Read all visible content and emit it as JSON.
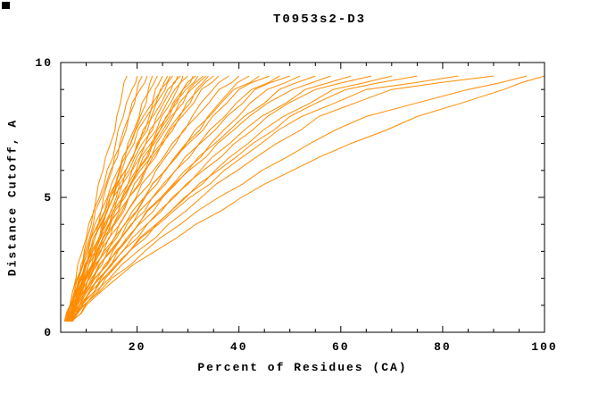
{
  "chart": {
    "title": "T0953s2-D3",
    "xlabel": "Percent of Residues (CA)",
    "ylabel": "Distance Cutoff, A"
  },
  "chart_data": {
    "type": "line",
    "title": "T0953s2-D3",
    "xlabel": "Percent of Residues (CA)",
    "ylabel": "Distance Cutoff, A",
    "xlim": [
      5,
      100
    ],
    "ylim": [
      0,
      10
    ],
    "x_major_ticks": [
      20,
      40,
      60,
      80,
      100
    ],
    "x_minor_step": 5,
    "y_major_ticks": [
      0,
      5,
      10
    ],
    "y_minor_step": 1,
    "grid": false,
    "legend": "none",
    "line_color": "#ff8c00",
    "axis_color": "#000000",
    "background": "#ffffff",
    "y_values": [
      0.4,
      1,
      2,
      3,
      4,
      5,
      6,
      7,
      8,
      9,
      9.5
    ],
    "series": [
      [
        6.0,
        6.8,
        8.0,
        9.2,
        10.5,
        12.0,
        13.3,
        14.8,
        16.0,
        17.2,
        18.0
      ],
      [
        6.2,
        7.0,
        8.3,
        9.6,
        11.0,
        12.6,
        14.1,
        15.8,
        17.3,
        19.0,
        20.0
      ],
      [
        6.3,
        7.2,
        8.6,
        10.1,
        11.7,
        13.4,
        15.1,
        16.9,
        18.4,
        20.0,
        21.0
      ],
      [
        5.8,
        6.8,
        8.2,
        9.8,
        11.4,
        13.0,
        14.8,
        16.6,
        18.4,
        20.6,
        22.0
      ],
      [
        6.7,
        7.7,
        9.3,
        11.0,
        12.8,
        14.7,
        16.7,
        18.7,
        20.6,
        22.2,
        23.0
      ],
      [
        6.5,
        7.4,
        9.0,
        10.6,
        12.4,
        14.2,
        16.2,
        18.2,
        20.4,
        22.6,
        24.0
      ],
      [
        6.0,
        7.0,
        8.6,
        10.4,
        12.3,
        14.3,
        16.5,
        18.8,
        21.2,
        23.6,
        25.0
      ],
      [
        6.8,
        7.8,
        9.5,
        11.3,
        13.3,
        15.4,
        17.7,
        20.0,
        22.4,
        24.8,
        26.0
      ],
      [
        5.7,
        6.8,
        8.5,
        10.4,
        12.5,
        14.7,
        17.0,
        19.4,
        21.9,
        24.6,
        26.5
      ],
      [
        6.3,
        7.3,
        9.0,
        11.0,
        13.1,
        15.3,
        17.7,
        20.2,
        22.8,
        25.5,
        27.0
      ],
      [
        5.9,
        7.0,
        8.8,
        10.8,
        13.0,
        15.3,
        17.8,
        20.4,
        23.1,
        26.0,
        28.0
      ],
      [
        6.2,
        7.3,
        9.2,
        11.3,
        13.5,
        15.9,
        18.4,
        21.0,
        23.8,
        26.7,
        28.5
      ],
      [
        6.6,
        7.7,
        9.6,
        11.7,
        14.0,
        16.4,
        19.0,
        21.7,
        24.5,
        27.4,
        29.0
      ],
      [
        6.1,
        7.2,
        9.1,
        11.3,
        13.7,
        16.2,
        18.9,
        21.8,
        24.8,
        27.9,
        30.0
      ],
      [
        6.9,
        8.0,
        10.0,
        12.2,
        14.6,
        17.2,
        20.0,
        22.9,
        25.9,
        29.0,
        31.0
      ],
      [
        6.8,
        7.9,
        9.9,
        12.1,
        14.5,
        17.0,
        19.8,
        22.7,
        25.7,
        29.0,
        31.5
      ],
      [
        6.4,
        7.6,
        9.7,
        12.0,
        14.5,
        17.2,
        20.1,
        23.1,
        26.3,
        29.6,
        32.0
      ],
      [
        6.0,
        7.2,
        9.4,
        11.8,
        14.4,
        17.2,
        20.2,
        23.4,
        26.7,
        30.2,
        33.0
      ],
      [
        6.4,
        7.6,
        9.8,
        12.2,
        14.8,
        17.6,
        20.6,
        23.8,
        27.1,
        30.6,
        33.5
      ],
      [
        7.0,
        8.2,
        10.4,
        12.9,
        15.6,
        18.4,
        21.5,
        24.7,
        28.1,
        31.6,
        34.0
      ],
      [
        6.5,
        7.8,
        10.1,
        12.7,
        15.4,
        18.4,
        21.5,
        24.9,
        28.4,
        32.1,
        35.0
      ],
      [
        6.2,
        7.5,
        9.9,
        12.5,
        15.4,
        18.4,
        21.7,
        25.1,
        28.8,
        32.6,
        36.0
      ],
      [
        6.8,
        8.2,
        10.7,
        13.5,
        16.5,
        19.8,
        23.2,
        26.9,
        30.8,
        34.9,
        38.0
      ],
      [
        6.3,
        7.8,
        10.4,
        13.4,
        16.6,
        20.0,
        23.7,
        27.6,
        31.7,
        36.1,
        40.0
      ],
      [
        7.2,
        8.7,
        11.5,
        14.6,
        18.0,
        21.6,
        25.5,
        29.6,
        33.9,
        38.5,
        42.0
      ],
      [
        6.6,
        8.2,
        11.0,
        14.2,
        17.6,
        21.4,
        25.4,
        29.7,
        34.2,
        39.0,
        44.0
      ],
      [
        6.0,
        7.7,
        10.6,
        13.9,
        17.5,
        21.4,
        25.6,
        30.1,
        34.8,
        40.0,
        46.0
      ],
      [
        6.9,
        8.6,
        11.7,
        15.2,
        19.0,
        23.1,
        27.5,
        32.2,
        37.2,
        42.5,
        48.0
      ],
      [
        6.4,
        8.2,
        11.3,
        14.9,
        18.8,
        23.0,
        27.6,
        32.4,
        37.6,
        43.1,
        50.0
      ],
      [
        7.4,
        9.2,
        12.5,
        16.2,
        20.3,
        24.7,
        29.4,
        34.5,
        39.9,
        45.6,
        52.0
      ],
      [
        6.7,
        8.7,
        12.2,
        16.1,
        20.4,
        25.0,
        30.0,
        35.3,
        41.0,
        47.9,
        55.0
      ],
      [
        6.1,
        8.1,
        11.7,
        15.8,
        20.2,
        25.0,
        30.2,
        35.8,
        42.0,
        50.5,
        58.0
      ],
      [
        7.0,
        9.1,
        12.9,
        17.2,
        21.9,
        26.9,
        32.4,
        38.2,
        44.4,
        53.0,
        62.0
      ],
      [
        6.5,
        8.7,
        12.7,
        17.1,
        22.0,
        27.3,
        33.0,
        39.1,
        45.6,
        55.0,
        66.0
      ],
      [
        7.3,
        9.6,
        13.8,
        18.5,
        23.7,
        29.3,
        35.3,
        41.8,
        48.7,
        58.5,
        70.0
      ],
      [
        6.8,
        9.2,
        13.5,
        18.4,
        23.8,
        29.6,
        35.9,
        42.7,
        50.0,
        61.0,
        75.0
      ],
      [
        6.2,
        8.8,
        13.3,
        18.5,
        24.2,
        30.4,
        37.1,
        44.4,
        52.3,
        65.0,
        83.0
      ],
      [
        7.1,
        9.8,
        14.6,
        20.1,
        26.1,
        32.6,
        39.7,
        47.4,
        55.7,
        70.0,
        90.0
      ],
      [
        6.6,
        9.5,
        15.0,
        21.5,
        28.5,
        36.0,
        44.5,
        54.0,
        65.0,
        85.0,
        96.5
      ],
      [
        6.9,
        10.0,
        16.0,
        23.5,
        31.5,
        40.5,
        50.5,
        62.0,
        75.0,
        92.0,
        100.0
      ]
    ]
  }
}
